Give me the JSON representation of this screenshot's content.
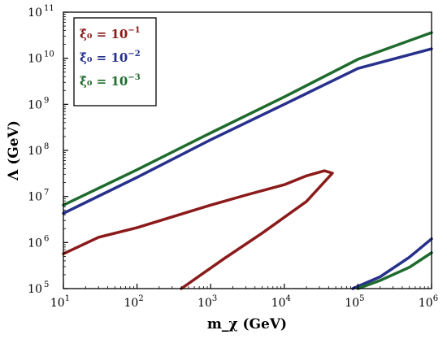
{
  "chart_data": {
    "type": "line",
    "xlabel": "m_χ (GeV)",
    "ylabel": "Λ (GeV)",
    "xscale": "log",
    "yscale": "log",
    "xlim": [
      10,
      1000000
    ],
    "ylim": [
      100000,
      100000000000
    ],
    "x_ticks": [
      {
        "base": "10",
        "exp": "1",
        "value": 10
      },
      {
        "base": "10",
        "exp": "2",
        "value": 100
      },
      {
        "base": "10",
        "exp": "3",
        "value": 1000
      },
      {
        "base": "10",
        "exp": "4",
        "value": 10000
      },
      {
        "base": "10",
        "exp": "5",
        "value": 100000
      },
      {
        "base": "10",
        "exp": "6",
        "value": 1000000
      }
    ],
    "y_ticks": [
      {
        "base": "10",
        "exp": "5",
        "value": 100000
      },
      {
        "base": "10",
        "exp": "6",
        "value": 1000000
      },
      {
        "base": "10",
        "exp": "7",
        "value": 10000000
      },
      {
        "base": "10",
        "exp": "8",
        "value": 100000000
      },
      {
        "base": "10",
        "exp": "9",
        "value": 1000000000
      },
      {
        "base": "10",
        "exp": "10",
        "value": 10000000000
      },
      {
        "base": "10",
        "exp": "11",
        "value": 100000000000
      }
    ],
    "grid": false,
    "legend_position": "top-left",
    "series": [
      {
        "label_lhs": "ξ̂₀ = ",
        "label_base": "10",
        "label_exp": "−1",
        "color": "#8b1a1a",
        "segments": [
          [
            [
              10,
              570000
            ],
            [
              30,
              1300000
            ],
            [
              100,
              2100000
            ],
            [
              300,
              3600000
            ],
            [
              1000,
              6500000
            ],
            [
              3000,
              10700000
            ],
            [
              10000,
              18000000
            ],
            [
              20000,
              28000000
            ],
            [
              35000,
              36000000
            ],
            [
              45000,
              32000000
            ],
            [
              20000,
              7800000
            ],
            [
              5000,
              1600000
            ],
            [
              1500,
              440000
            ],
            [
              400,
              100000
            ]
          ]
        ]
      },
      {
        "label_lhs": "ξ̂₀ = ",
        "label_base": "10",
        "label_exp": "−2",
        "color": "#27318c",
        "segments": [
          [
            [
              10,
              4300000
            ],
            [
              100,
              26000000
            ],
            [
              1000,
              170000000
            ],
            [
              10000,
              1000000000
            ],
            [
              100000,
              6000000000
            ],
            [
              1000000,
              16000000000
            ]
          ],
          [
            [
              85000,
              100000
            ],
            [
              200000,
              180000
            ],
            [
              500000,
              480000
            ],
            [
              1000000,
              1200000
            ]
          ]
        ]
      },
      {
        "label_lhs": "ξ̂₀ = ",
        "label_base": "10",
        "label_exp": "−3",
        "color": "#1f6b2e",
        "segments": [
          [
            [
              10,
              6500000
            ],
            [
              100,
              38000000
            ],
            [
              1000,
              240000000
            ],
            [
              10000,
              1450000000
            ],
            [
              100000,
              9500000000
            ],
            [
              1000000,
              36000000000
            ]
          ],
          [
            [
              100000,
              100000
            ],
            [
              200000,
              150000
            ],
            [
              500000,
              290000
            ],
            [
              1000000,
              600000
            ]
          ]
        ]
      }
    ]
  }
}
